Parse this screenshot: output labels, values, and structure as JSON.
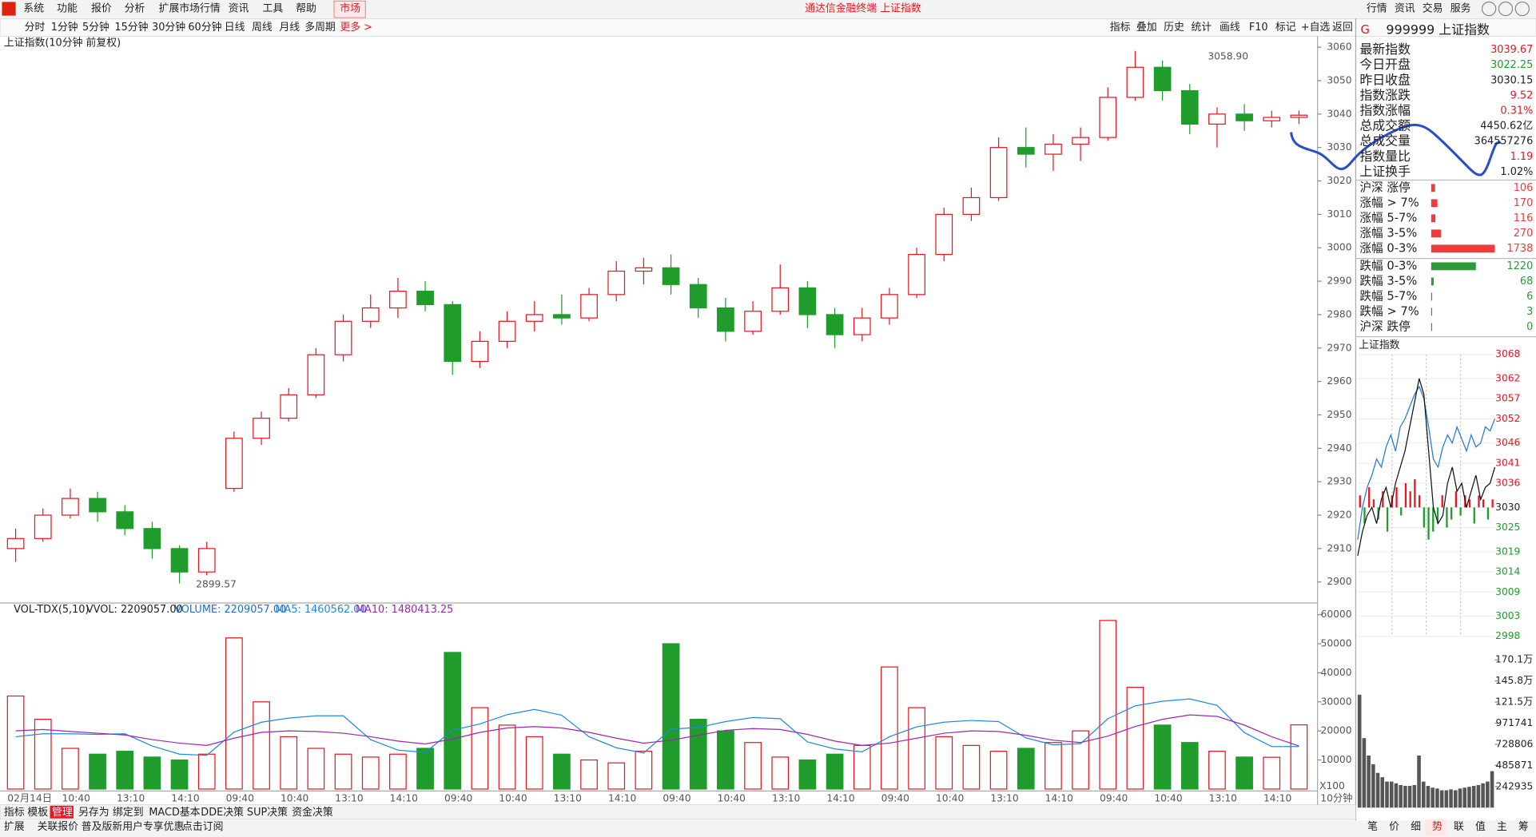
{
  "menu": [
    "系统",
    "功能",
    "报价",
    "分析",
    "扩展市场行情",
    "资讯",
    "工具",
    "帮助",
    "市场"
  ],
  "title_bar": "通达信金融终端 上证指数",
  "top_right": [
    "行情",
    "资讯",
    "交易",
    "服务"
  ],
  "periods": [
    "分时",
    "1分钟",
    "5分钟",
    "15分钟",
    "30分钟",
    "60分钟",
    "日线",
    "周线",
    "月线",
    "多周期",
    "更多 >"
  ],
  "tools": [
    "指标",
    "叠加",
    "历史",
    "统计",
    "画线",
    "F10",
    "标记",
    "+自选",
    "返回"
  ],
  "tabs": [
    "指标",
    "模板",
    "管理",
    "另存为",
    "绑定到",
    "MACD基本",
    "DDE决策",
    "SUP决策",
    "资金决策"
  ],
  "status": [
    "扩展",
    "关联报价",
    "普及版新用户专享优惠",
    "点击订阅"
  ],
  "quote": {
    "mark": "G",
    "code": "999999 上证指数",
    "rows": [
      {
        "label": "最新指数",
        "value": "3039.67",
        "color": "#e8161f"
      },
      {
        "label": "今日开盘",
        "value": "3022.25",
        "color": "#1f9c2c"
      },
      {
        "label": "昨日收盘",
        "value": "3030.15",
        "color": "#222"
      },
      {
        "label": "指数涨跌",
        "value": "9.52",
        "color": "#e8161f"
      },
      {
        "label": "指数涨幅",
        "value": "0.31%",
        "color": "#e8161f"
      },
      {
        "label": "总成交额",
        "value": "4450.62亿",
        "color": "#222"
      },
      {
        "label": "总成交量",
        "value": "364557276",
        "color": "#222"
      },
      {
        "label": "指数量比",
        "value": "1.19",
        "color": "#e8161f"
      },
      {
        "label": "上证换手",
        "value": "1.02%",
        "color": "#222"
      }
    ]
  },
  "breadth": {
    "up_color": "#f03a3a",
    "down_color": "#2a9a3a",
    "up": [
      {
        "label": "沪深 涨停",
        "value": 106
      },
      {
        "label": "涨幅 > 7%",
        "value": 170
      },
      {
        "label": "涨幅 5-7%",
        "value": 116
      },
      {
        "label": "涨幅 3-5%",
        "value": 270
      },
      {
        "label": "涨幅 0-3%",
        "value": 1738
      }
    ],
    "down": [
      {
        "label": "跌幅 0-3%",
        "value": 1220
      },
      {
        "label": "跌幅 3-5%",
        "value": 68
      },
      {
        "label": "跌幅 5-7%",
        "value": 6
      },
      {
        "label": "跌幅 > 7%",
        "value": 3
      },
      {
        "label": "沪深 跌停",
        "value": 0
      }
    ]
  },
  "mini_tabs": [
    "笔",
    "价",
    "细",
    "势",
    "联",
    "值",
    "主",
    "筹"
  ],
  "chart_data": [
    {
      "type": "candlestick",
      "title": "上证指数(10分钟 前复权)",
      "up_color": "#e8161f",
      "down_color": "#1f9c2c",
      "categories": [
        "02月14日",
        null,
        "10:40",
        null,
        "13:10",
        null,
        "14:10",
        null,
        "09:40",
        null,
        "10:40",
        null,
        "13:10",
        null,
        "14:10",
        null,
        "09:40",
        null,
        "10:40",
        null,
        "13:10",
        null,
        "14:10",
        null,
        "09:40",
        null,
        "10:40",
        null,
        "13:10",
        null,
        "14:10",
        null,
        "09:40",
        null,
        "10:40",
        null,
        "13:10",
        null,
        "14:10",
        null,
        "09:40",
        null,
        "10:40",
        null,
        "13:10",
        null,
        "14:10",
        null
      ],
      "candles": [
        [
          2910,
          2916,
          2906,
          2913
        ],
        [
          2913,
          2922,
          2912,
          2920
        ],
        [
          2920,
          2928,
          2919,
          2925
        ],
        [
          2925,
          2927,
          2918,
          2921
        ],
        [
          2921,
          2923,
          2914,
          2916
        ],
        [
          2916,
          2918,
          2907,
          2910
        ],
        [
          2910,
          2911,
          2899.57,
          2903
        ],
        [
          2903,
          2912,
          2902,
          2910
        ],
        [
          2928,
          2945,
          2927,
          2943
        ],
        [
          2943,
          2951,
          2941,
          2949
        ],
        [
          2949,
          2958,
          2948,
          2956
        ],
        [
          2956,
          2970,
          2955,
          2968
        ],
        [
          2968,
          2980,
          2966,
          2978
        ],
        [
          2978,
          2986,
          2976,
          2982
        ],
        [
          2982,
          2991,
          2979,
          2987
        ],
        [
          2987,
          2990,
          2981,
          2983
        ],
        [
          2983,
          2984,
          2962,
          2966
        ],
        [
          2966,
          2975,
          2964,
          2972
        ],
        [
          2972,
          2981,
          2970,
          2978
        ],
        [
          2978,
          2984,
          2975,
          2980
        ],
        [
          2980,
          2986,
          2977,
          2979
        ],
        [
          2979,
          2988,
          2978,
          2986
        ],
        [
          2986,
          2996,
          2984,
          2993
        ],
        [
          2993,
          2997,
          2989,
          2994
        ],
        [
          2994,
          2998,
          2986,
          2989
        ],
        [
          2989,
          2991,
          2979,
          2982
        ],
        [
          2982,
          2985,
          2972,
          2975
        ],
        [
          2975,
          2984,
          2974,
          2981
        ],
        [
          2981,
          2995,
          2980,
          2988
        ],
        [
          2988,
          2990,
          2976,
          2980
        ],
        [
          2980,
          2982,
          2970,
          2974
        ],
        [
          2974,
          2982,
          2972,
          2979
        ],
        [
          2979,
          2988,
          2977,
          2986
        ],
        [
          2986,
          3000,
          2985,
          2998
        ],
        [
          2998,
          3012,
          2996,
          3010
        ],
        [
          3010,
          3018,
          3008,
          3015
        ],
        [
          3015,
          3033,
          3014,
          3030
        ],
        [
          3030,
          3036,
          3024,
          3028
        ],
        [
          3028,
          3034,
          3023,
          3031
        ],
        [
          3031,
          3036,
          3026,
          3033
        ],
        [
          3033,
          3048,
          3032,
          3045
        ],
        [
          3045,
          3058.9,
          3044,
          3054
        ],
        [
          3054,
          3056,
          3044,
          3047
        ],
        [
          3047,
          3049,
          3034,
          3037
        ],
        [
          3037,
          3042,
          3030,
          3040
        ],
        [
          3040,
          3043,
          3035,
          3038
        ],
        [
          3038,
          3041,
          3036,
          3039
        ],
        [
          3039,
          3041,
          3037,
          3039.67
        ]
      ],
      "high_label": "3058.90",
      "low_label": "2899.57",
      "period": "10分钟",
      "ylim": [
        2894,
        3063
      ],
      "yticks": [
        2900,
        2910,
        2920,
        2930,
        2940,
        2950,
        2960,
        2970,
        2980,
        2990,
        3000,
        3010,
        3020,
        3030,
        3040,
        3050,
        3060
      ]
    },
    {
      "type": "volume",
      "title": "VOL-TDX(5,10)",
      "subtitle": "VVOL: 2209057.00",
      "unit": "X100",
      "series": [
        {
          "name": "VOLUME: 2209057.00",
          "color": "#1e6fd0",
          "values": [
            32000,
            24000,
            14000,
            12000,
            13000,
            11000,
            10000,
            12000,
            52000,
            30000,
            18000,
            14000,
            12000,
            11000,
            12000,
            14000,
            47000,
            28000,
            22000,
            18000,
            12000,
            10000,
            9000,
            13000,
            50000,
            24000,
            20000,
            16000,
            11000,
            10000,
            12000,
            15000,
            42000,
            28000,
            18000,
            15000,
            13000,
            14000,
            16000,
            20000,
            58000,
            35000,
            22000,
            16000,
            13000,
            11000,
            10939,
            22091
          ]
        },
        {
          "name": "MA5: 1460562.00",
          "color": "#1e88e5",
          "values": [
            18000,
            19000,
            19000,
            18800,
            19000,
            14800,
            12000,
            11600,
            19600,
            23000,
            24400,
            25200,
            25200,
            17000,
            13400,
            12600,
            20200,
            22400,
            25600,
            27400,
            25400,
            18000,
            14200,
            12400,
            20600,
            21200,
            23200,
            24600,
            24200,
            16200,
            13800,
            12800,
            18000,
            21400,
            23000,
            23600,
            23200,
            17600,
            15200,
            15600,
            24200,
            28600,
            30200,
            31000,
            28800,
            19400,
            14600,
            14606
          ]
        },
        {
          "name": "MA10: 1480413.25",
          "color": "#9c27b0",
          "values": [
            20000,
            20500,
            19800,
            19200,
            18600,
            17000,
            15800,
            15000,
            17500,
            19500,
            20000,
            19800,
            19200,
            18000,
            16500,
            15500,
            17200,
            19500,
            21000,
            21500,
            21000,
            19500,
            17500,
            15800,
            16800,
            18500,
            20200,
            20800,
            20500,
            18800,
            16500,
            15000,
            15800,
            17500,
            19200,
            20000,
            19800,
            18500,
            16800,
            16000,
            18200,
            21500,
            24000,
            25500,
            25000,
            22000,
            18000,
            14804
          ]
        }
      ],
      "ylim": [
        0,
        64000
      ],
      "yticks": [
        10000,
        20000,
        30000,
        40000,
        50000,
        60000
      ]
    },
    {
      "type": "line",
      "title": "上证指数",
      "up_color": "#e8161f",
      "down_color": "#1f9c2c",
      "series": [
        {
          "color": "#1e78d8",
          "values": [
            3022,
            3030,
            3035,
            3038,
            3042,
            3040,
            3045,
            3048,
            3044,
            3050,
            3052,
            3055,
            3058,
            3060,
            3057,
            3050,
            3042,
            3040,
            3045,
            3048,
            3046,
            3050,
            3047,
            3044,
            3048,
            3045,
            3046,
            3050,
            3049,
            3052
          ]
        },
        {
          "color": "#111",
          "values": [
            3018,
            3024,
            3028,
            3030,
            3026,
            3032,
            3035,
            3030,
            3036,
            3040,
            3044,
            3050,
            3056,
            3062,
            3058,
            3044,
            3030,
            3026,
            3028,
            3036,
            3040,
            3034,
            3036,
            3030,
            3034,
            3038,
            3032,
            3035,
            3036,
            3040
          ]
        }
      ],
      "bars": [
        3,
        -4,
        5,
        2,
        -3,
        4,
        -6,
        3,
        5,
        -2,
        6,
        4,
        7,
        3,
        -5,
        -8,
        -6,
        -4,
        3,
        -5,
        -3,
        4,
        -2,
        3,
        2,
        -4,
        3,
        2,
        -3,
        2
      ],
      "ylim": [
        2998,
        3068
      ],
      "yticks": [
        3068,
        3062,
        3057,
        3052,
        3046,
        3041,
        3036,
        3030,
        3025,
        3019,
        3014,
        3009,
        3003,
        2998
      ]
    },
    {
      "type": "bar",
      "color": "#555",
      "values": [
        1300000,
        800000,
        600000,
        500000,
        400000,
        350000,
        300000,
        300000,
        280000,
        260000,
        250000,
        250000,
        260000,
        600000,
        300000,
        250000,
        230000,
        220000,
        200000,
        200000,
        210000,
        200000,
        220000,
        230000,
        240000,
        250000,
        260000,
        280000,
        300000,
        420000
      ],
      "ylim": [
        0,
        1803000
      ],
      "yticks": [
        {
          "value": 1701000,
          "label": "170.1万"
        },
        {
          "value": 1458000,
          "label": "145.8万"
        },
        {
          "value": 1215000,
          "label": "121.5万"
        },
        971741,
        728806,
        485871,
        242935
      ]
    }
  ]
}
